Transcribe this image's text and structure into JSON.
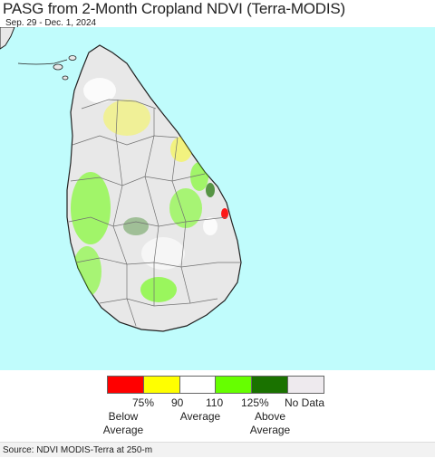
{
  "header": {
    "title": "PASG from 2-Month Cropland NDVI (Terra-MODIS)",
    "date_range": "Sep. 29 - Dec. 1, 2024"
  },
  "map": {
    "region": "Sri Lanka",
    "colors": {
      "water": "#c0fcfc",
      "land_no_data": "#e8e8e8",
      "boundary": "#707070",
      "coast": "#222222"
    }
  },
  "legend": {
    "swatches": [
      {
        "color": "#ff0000"
      },
      {
        "color": "#ffff00"
      },
      {
        "color": "#ffffff"
      },
      {
        "color": "#66ff00"
      },
      {
        "color": "#1a7200"
      },
      {
        "color": "#eeeaee"
      }
    ],
    "ticks": [
      "75%",
      "90",
      "110",
      "125%",
      "No Data"
    ],
    "categories": [
      "Below\nAverage",
      "Average",
      "Above\nAverage"
    ]
  },
  "footer": {
    "source": "Source: NDVI MODIS-Terra at 250-m"
  }
}
